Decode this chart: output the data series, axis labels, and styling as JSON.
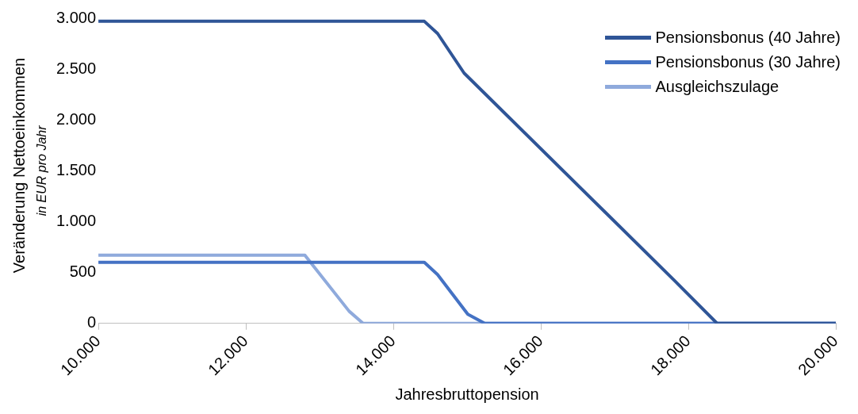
{
  "chart_data": {
    "type": "line",
    "xlabel": "Jahresbruttopension",
    "ylabel": "Veränderung Nettoeinkommen",
    "annotations": [
      "in EUR pro Jahr"
    ],
    "xlim": [
      10000,
      20000
    ],
    "xticks": [
      {
        "value": 10000,
        "label": "10.000"
      },
      {
        "value": 12000,
        "label": "12.000"
      },
      {
        "value": 14000,
        "label": "14.000"
      },
      {
        "value": 16000,
        "label": "16.000"
      },
      {
        "value": 18000,
        "label": "18.000"
      },
      {
        "value": 20000,
        "label": "20.000"
      }
    ],
    "ylim": [
      0,
      3000
    ],
    "yticks": [
      0,
      500,
      {
        "value": 1000,
        "label": "1.000"
      },
      {
        "value": 1500,
        "label": "1.500"
      },
      {
        "value": 2000,
        "label": "2.000"
      },
      {
        "value": 2500,
        "label": "2.500"
      },
      {
        "value": 3000,
        "label": "3.000"
      }
    ],
    "legend": "top right",
    "marker": "none",
    "line_style": "solid",
    "series": [
      {
        "name": "Pensionsbonus (40 Jahre)",
        "color": "#2f5597",
        "x": [
          10000,
          14420,
          14600,
          14960,
          17800,
          18390,
          20000
        ],
        "values": [
          2970,
          2970,
          2850,
          2460,
          430,
          0,
          0
        ]
      },
      {
        "name": "Pensionsbonus (30 Jahre)",
        "color": "#4472c4",
        "x": [
          10000,
          14420,
          14600,
          15010,
          15240,
          20000
        ],
        "values": [
          600,
          600,
          480,
          90,
          0,
          0
        ]
      },
      {
        "name": "Ausgleichszulage",
        "color": "#8faadc",
        "x": [
          10000,
          12800,
          13400,
          13590,
          20000
        ],
        "values": [
          670,
          670,
          120,
          0,
          0
        ]
      }
    ]
  }
}
